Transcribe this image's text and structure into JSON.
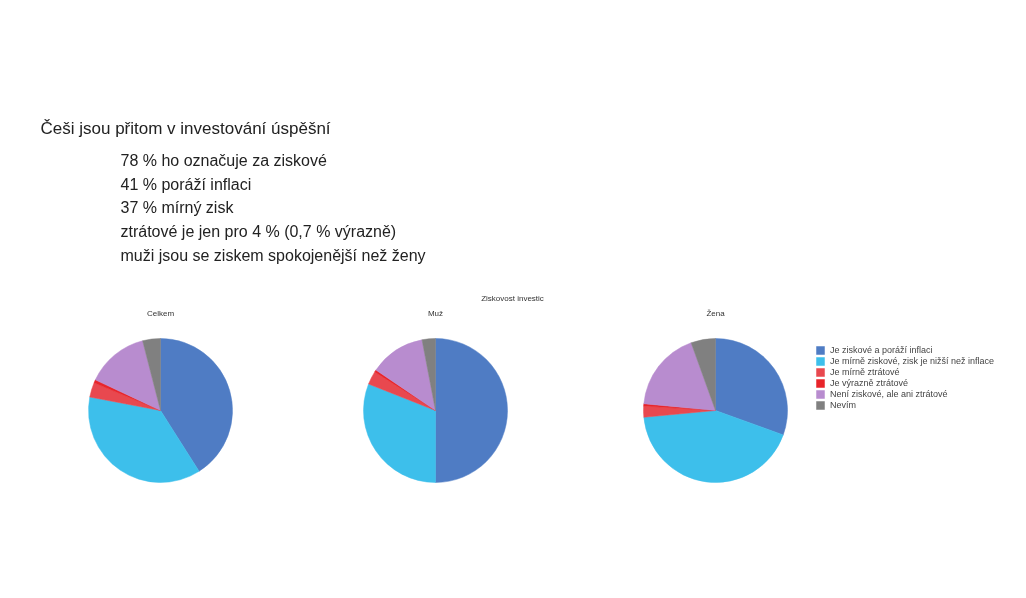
{
  "chart_data": [
    {
      "type": "pie",
      "title": "Celkem",
      "categories": [
        "Je ziskové a poráží inflaci",
        "Je mírně ziskové, zisk je nižší než inflace",
        "Je mírně ztrátové",
        "Je výrazně ztrátové",
        "Není ziskové, ale ani ztrátové",
        "Nevím"
      ],
      "values": [
        41,
        37,
        3.3,
        0.7,
        14,
        4
      ],
      "colors": [
        "#4f7cc4",
        "#3dbfeb",
        "#e8484f",
        "#e8252a",
        "#b88ccf",
        "#808080"
      ],
      "legend": "right",
      "annotations": [
        "Češi jsou přitom v investování úspěšní",
        "78 % ho označuje za ziskové",
        "41 % poráží inflaci",
        "37 % mírný zisk",
        "ztrátové je jen pro 4 % (0,7 % výrazně)",
        "muži jsou se ziskem spokojenější než ženy"
      ]
    },
    {
      "type": "pie",
      "title": "Muž",
      "categories": [
        null,
        null,
        null,
        null,
        null,
        null
      ],
      "values": [
        50,
        31,
        3,
        0.5,
        12.5,
        3
      ],
      "colors": [
        "#4f7cc4",
        "#3dbfeb",
        "#e8484f",
        "#e8252a",
        "#b88ccf",
        "#808080"
      ],
      "annotations": [
        "Ziskovost investic"
      ]
    },
    {
      "type": "pie",
      "title": "Žena",
      "categories": [
        null,
        null,
        null,
        null,
        null,
        null
      ],
      "values": [
        30.5,
        43,
        2.5,
        0.5,
        18,
        5.5
      ],
      "colors": [
        "#4f7cc4",
        "#3dbfeb",
        "#e8484f",
        "#e8252a",
        "#b88ccf",
        "#808080"
      ]
    }
  ]
}
